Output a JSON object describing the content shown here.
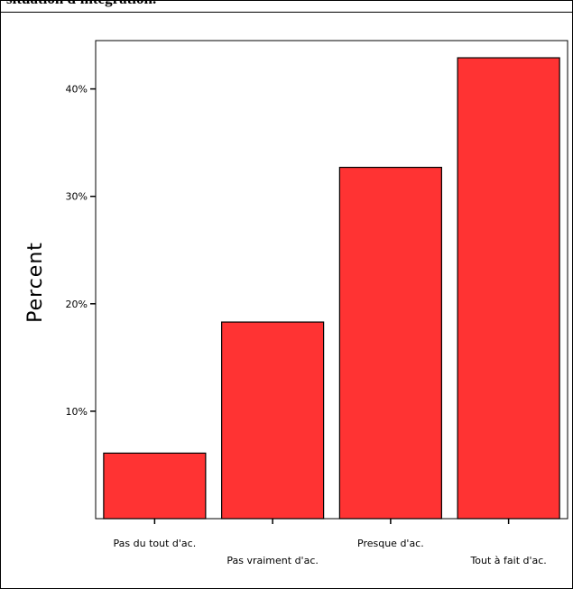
{
  "caption": "situation d'intégration.",
  "chart_data": {
    "type": "bar",
    "title": "",
    "xlabel": "",
    "ylabel": "Percent",
    "categories": [
      "Pas du tout d'ac.",
      "Pas vraiment d'ac.",
      "Presque d'ac.",
      "Tout à fait d'ac."
    ],
    "values": [
      6.1,
      18.3,
      32.7,
      42.9
    ],
    "yticks": [
      10,
      20,
      30,
      40
    ],
    "ytick_labels": [
      "10%",
      "20%",
      "30%",
      "40%"
    ],
    "ylim": [
      0,
      44.5
    ],
    "grid": false,
    "legend": "none",
    "bar_color": "#ff3333",
    "bar_stroke": "#000000"
  }
}
